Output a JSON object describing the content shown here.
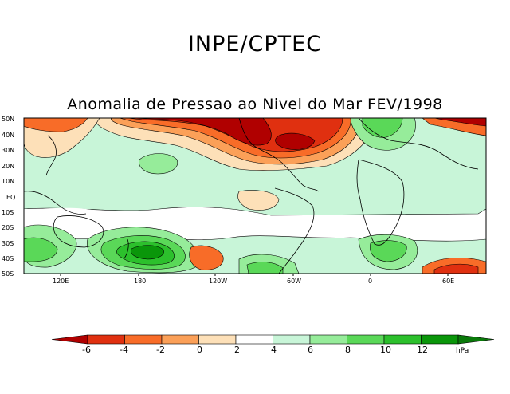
{
  "header": {
    "agency": "INPE/CPTEC"
  },
  "map": {
    "title": "Anomalia de Pressao ao Nivel do Mar FEV/1998",
    "lat_labels": [
      "50N",
      "40N",
      "30N",
      "20N",
      "10N",
      "EQ",
      "10S",
      "20S",
      "30S",
      "40S",
      "50S"
    ],
    "lon_labels": [
      "120E",
      "180",
      "120W",
      "60W",
      "0",
      "60E"
    ]
  },
  "colorbar": {
    "unit": "hPa",
    "ticks": [
      "-6",
      "-4",
      "-2",
      "0",
      "2",
      "4",
      "6",
      "8",
      "10",
      "12"
    ],
    "colors": [
      "#b00000",
      "#e03010",
      "#f86c28",
      "#fba058",
      "#fde0b8",
      "#ffffff",
      "#c8f5d8",
      "#96ec9a",
      "#5ad858",
      "#2cc02c",
      "#0a960a",
      "#0a7a0a"
    ]
  }
}
